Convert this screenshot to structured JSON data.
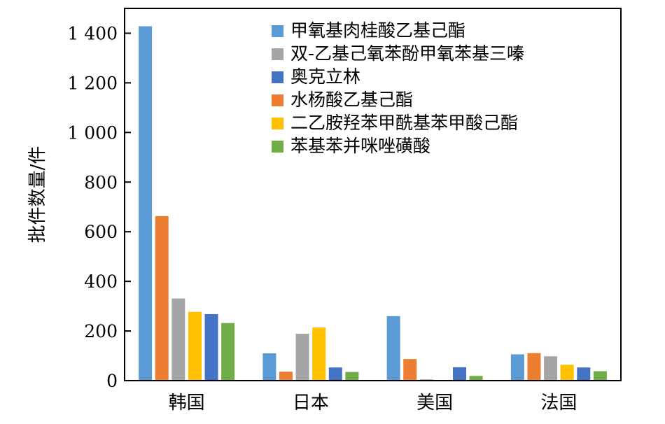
{
  "chart_data": {
    "type": "bar",
    "title": "",
    "xlabel": "",
    "ylabel": "批件数量/件",
    "ylim": [
      0,
      1500
    ],
    "yticks": [
      0,
      200,
      400,
      600,
      800,
      1000,
      1200,
      1400
    ],
    "ytick_labels": [
      "0",
      "200",
      "400",
      "600",
      "800",
      "1 000",
      "1 200",
      "1 400"
    ],
    "grid": false,
    "legend_position": "top-right",
    "categories": [
      "韩国",
      "日本",
      "美国",
      "法国"
    ],
    "series": [
      {
        "name": "甲氧基肉桂酸乙基己酯",
        "color": "#5B9BD5",
        "values": [
          1428,
          110,
          260,
          106
        ]
      },
      {
        "name": "水杨酸乙基己酯",
        "color": "#ED7D31",
        "values": [
          663,
          36,
          87,
          111
        ]
      },
      {
        "name": "双-乙基己氧苯酚甲氧苯基三嗪",
        "color": "#A5A5A5",
        "values": [
          331,
          189,
          5,
          98
        ]
      },
      {
        "name": "二乙胺羟苯甲酰基苯甲酸己酯",
        "color": "#FFC000",
        "values": [
          277,
          214,
          3,
          64
        ]
      },
      {
        "name": "奥克立林",
        "color": "#4472C4",
        "values": [
          268,
          53,
          54,
          53
        ]
      },
      {
        "name": "苯基苯并咪唑磺酸",
        "color": "#70AD47",
        "values": [
          232,
          35,
          19,
          38
        ]
      }
    ],
    "legend_order": [
      0,
      2,
      4,
      1,
      3,
      5
    ]
  }
}
